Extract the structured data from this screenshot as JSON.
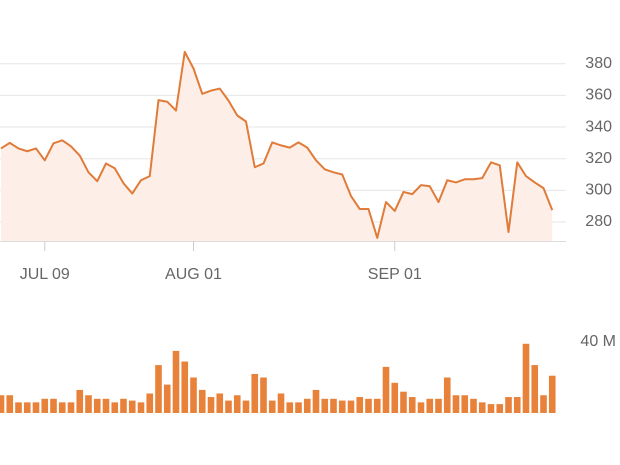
{
  "chart_data": [
    {
      "type": "area",
      "categories": [
        null,
        null,
        null,
        null,
        null,
        "JUL 09",
        null,
        null,
        null,
        null,
        null,
        null,
        null,
        null,
        null,
        null,
        null,
        null,
        null,
        null,
        null,
        null,
        "AUG 01",
        null,
        null,
        null,
        null,
        null,
        null,
        null,
        null,
        null,
        null,
        null,
        null,
        null,
        null,
        null,
        null,
        null,
        null,
        null,
        null,
        null,
        null,
        "SEP 01",
        null,
        null,
        null,
        null,
        null,
        null,
        null,
        null,
        null,
        null,
        null,
        null,
        null,
        null,
        null,
        null,
        null,
        null
      ],
      "values": [
        326.5,
        330,
        326.5,
        324.7,
        326.5,
        319,
        329.7,
        331.6,
        327.8,
        322,
        311.4,
        305.8,
        317,
        314,
        304.5,
        298,
        306.4,
        309,
        357,
        356,
        350.4,
        387.5,
        377,
        361,
        363,
        364.3,
        356.7,
        347.3,
        343.5,
        314.6,
        317,
        330.3,
        328.4,
        327,
        330.3,
        327,
        319,
        313.3,
        311.4,
        310,
        296.4,
        288.2,
        288.2,
        270,
        292.6,
        287,
        299,
        297.6,
        303.3,
        302.6,
        292.6,
        306.4,
        305,
        307,
        307,
        307.7,
        317.7,
        315.8,
        273.7,
        317.7,
        309,
        305,
        301.4,
        287.5
      ],
      "color": "#e07b39",
      "fill": "#fdefe7",
      "ylim": [
        268,
        395
      ],
      "yticks": [
        280,
        300,
        320,
        340,
        360,
        380
      ],
      "grid": true
    },
    {
      "type": "bar",
      "values": [
        10,
        10,
        6,
        6,
        6,
        8,
        8,
        6,
        6,
        13,
        10,
        8,
        8,
        6,
        8,
        7,
        6,
        11,
        27,
        16,
        35,
        29,
        20,
        13,
        9,
        11,
        7,
        10,
        7,
        22,
        20,
        7,
        11,
        6,
        6,
        8,
        13,
        8,
        8,
        7,
        7,
        9,
        8,
        8,
        26,
        17,
        12,
        9,
        6,
        8,
        8,
        20,
        10,
        10,
        8,
        6,
        5,
        5,
        9,
        9,
        39,
        27,
        10,
        21
      ],
      "color": "#e8823a",
      "ylim": [
        0,
        40
      ],
      "yticks": [
        {
          "value": 40,
          "label": "40 M"
        }
      ]
    }
  ]
}
